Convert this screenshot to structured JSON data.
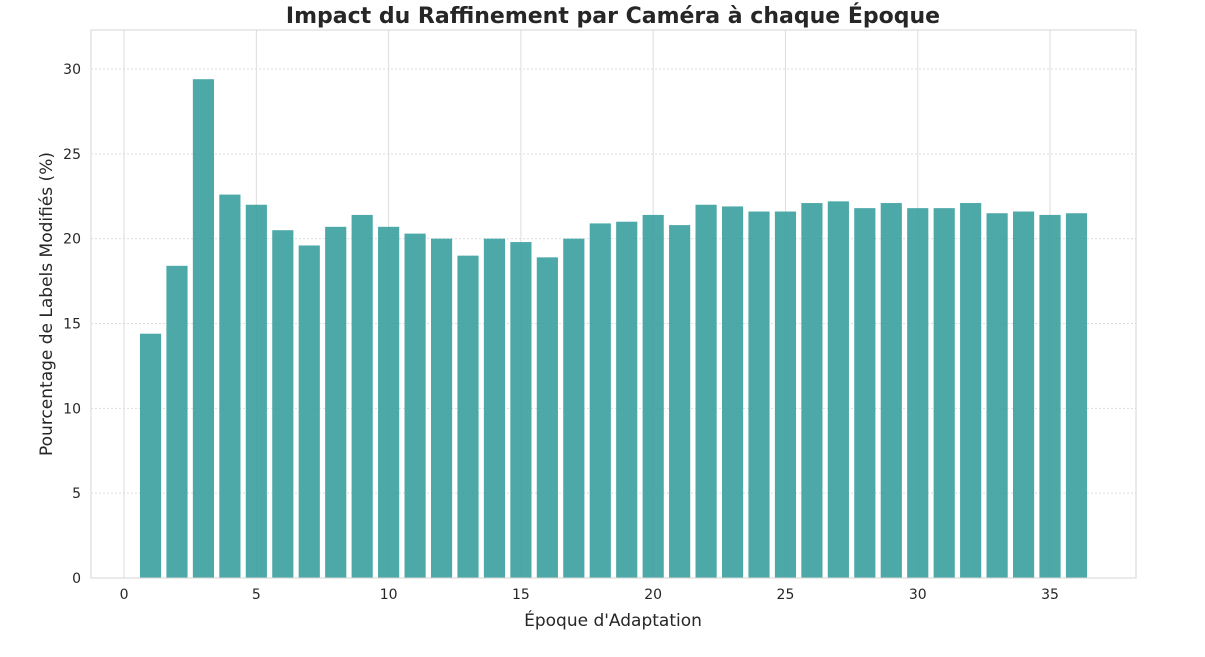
{
  "chart_data": {
    "type": "bar",
    "title": "Impact du Raffinement par Caméra à chaque Époque",
    "xlabel": "Époque d'Adaptation",
    "ylabel": "Pourcentage de Labels Modifiés (%)",
    "x": [
      1,
      2,
      3,
      4,
      5,
      6,
      7,
      8,
      9,
      10,
      11,
      12,
      13,
      14,
      15,
      16,
      17,
      18,
      19,
      20,
      21,
      22,
      23,
      24,
      25,
      26,
      27,
      28,
      29,
      30,
      31,
      32,
      33,
      34,
      35,
      36
    ],
    "values": [
      14.4,
      18.4,
      29.4,
      22.6,
      22.0,
      20.5,
      19.6,
      20.7,
      21.4,
      20.7,
      20.3,
      20.0,
      19.0,
      20.0,
      19.8,
      18.9,
      20.0,
      20.9,
      21.0,
      21.4,
      20.8,
      22.0,
      21.9,
      21.6,
      21.6,
      22.1,
      22.2,
      21.8,
      22.1,
      21.8,
      21.8,
      22.1,
      21.5,
      21.6,
      21.4,
      21.5
    ],
    "xlim": [
      -1.25,
      38.25
    ],
    "ylim": [
      0,
      32.3
    ],
    "xticks": [
      "0",
      "5",
      "10",
      "15",
      "20",
      "25",
      "30",
      "35"
    ],
    "yticks": [
      "0",
      "5",
      "10",
      "15",
      "20",
      "25",
      "30"
    ],
    "grid": true,
    "bar_color": "#3a9e9e",
    "grid_color": "#dddddd",
    "axis_color": "#d5d5d5"
  }
}
